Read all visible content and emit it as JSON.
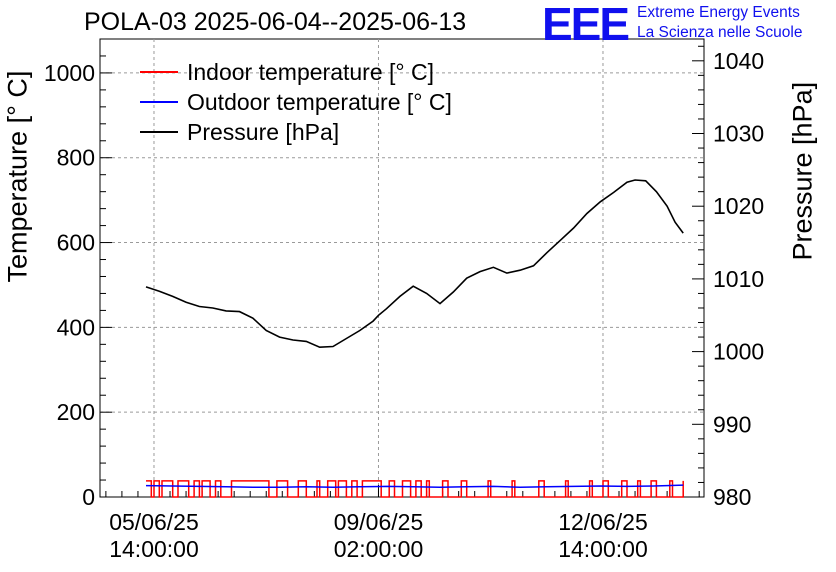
{
  "header": {
    "title": "POLA-03 2025-06-04--2025-06-13"
  },
  "logo": {
    "mark": "EEE",
    "line1": "Extreme Energy Events",
    "line2": "La Scienza nelle Scuole",
    "color": "#1010ee"
  },
  "legend": [
    {
      "label": "Indoor temperature [° C]",
      "color": "#ff0000"
    },
    {
      "label": "Outdoor temperature [° C]",
      "color": "#0000ff"
    },
    {
      "label": "Pressure [hPa]",
      "color": "#000000"
    }
  ],
  "chart_data": {
    "type": "line",
    "title": "POLA-03 2025-06-04--2025-06-13",
    "xlabel": "",
    "ylabel": "Temperature [° C]",
    "ylabel_right": "Pressure [hPa]",
    "ylim": [
      0,
      1080
    ],
    "ylim_right": [
      980,
      1043
    ],
    "yticks": [
      0,
      200,
      400,
      600,
      800,
      1000
    ],
    "yticks_right": [
      980,
      990,
      1000,
      1010,
      1020,
      1030,
      1040
    ],
    "x_unit": "hours since 2025-06-04 00:00",
    "xlim": [
      17.8,
      243.8
    ],
    "xticks": [
      {
        "x": 38,
        "label_date": "05/06/25",
        "label_time": "14:00:00"
      },
      {
        "x": 122,
        "label_date": "09/06/25",
        "label_time": "02:00:00"
      },
      {
        "x": 206,
        "label_date": "12/06/25",
        "label_time": "14:00:00"
      }
    ],
    "grid": true,
    "legend_position": "top-left",
    "series": [
      {
        "name": "Indoor temperature [° C]",
        "axis": "left",
        "color": "#ff0000",
        "x": [
          35,
          37,
          38,
          40,
          41,
          43,
          45,
          47,
          48,
          51,
          53,
          55,
          56,
          59,
          61,
          63,
          67,
          79,
          81,
          84,
          88,
          92,
          94,
          95,
          99,
          100,
          103,
          106,
          107,
          110,
          112,
          114,
          116,
          121,
          123,
          126,
          128,
          131,
          134,
          136,
          138,
          140,
          141,
          146,
          148,
          153,
          155,
          163,
          164,
          172,
          173,
          182,
          184,
          192,
          193,
          201,
          202,
          206,
          208,
          213,
          215,
          219,
          220,
          224,
          226,
          231,
          232,
          236
        ],
        "values": [
          38,
          0,
          38,
          0,
          38,
          38,
          0,
          38,
          38,
          0,
          38,
          0,
          38,
          0,
          38,
          0,
          38,
          38,
          0,
          38,
          0,
          38,
          38,
          0,
          38,
          0,
          38,
          0,
          38,
          0,
          38,
          0,
          38,
          38,
          0,
          38,
          0,
          38,
          0,
          38,
          0,
          38,
          0,
          38,
          0,
          38,
          0,
          38,
          0,
          38,
          0,
          38,
          0,
          38,
          0,
          38,
          0,
          38,
          0,
          38,
          0,
          38,
          0,
          38,
          0,
          38,
          0,
          38
        ]
      },
      {
        "name": "Outdoor temperature [° C]",
        "axis": "left",
        "color": "#0000ff",
        "x": [
          35,
          45,
          55,
          65,
          75,
          85,
          95,
          105,
          115,
          125,
          135,
          145,
          155,
          165,
          175,
          185,
          195,
          205,
          215,
          225,
          236
        ],
        "values": [
          27,
          26,
          25,
          24,
          23,
          23,
          24,
          23,
          24,
          25,
          24,
          23,
          24,
          25,
          23,
          24,
          25,
          26,
          25,
          26,
          28
        ]
      },
      {
        "name": "Pressure [hPa]",
        "axis": "right",
        "color": "#000000",
        "x": [
          35,
          40,
          45,
          50,
          55,
          60,
          65,
          70,
          75,
          80,
          85,
          90,
          95,
          100,
          105,
          110,
          115,
          120,
          122,
          125,
          130,
          135,
          140,
          145,
          150,
          155,
          160,
          165,
          170,
          175,
          180,
          185,
          190,
          195,
          200,
          205,
          210,
          215,
          218,
          222,
          226,
          230,
          233,
          236
        ],
        "values": [
          1008.9,
          1008.3,
          1007.6,
          1006.8,
          1006.2,
          1006.0,
          1005.6,
          1005.5,
          1004.6,
          1002.9,
          1002.0,
          1001.6,
          1001.4,
          1000.6,
          1000.7,
          1001.8,
          1002.9,
          1004.2,
          1005.0,
          1005.9,
          1007.6,
          1009.0,
          1008.0,
          1006.6,
          1008.2,
          1010.1,
          1011.0,
          1011.6,
          1010.8,
          1011.2,
          1011.8,
          1013.6,
          1015.3,
          1017.0,
          1019.0,
          1020.6,
          1021.9,
          1023.3,
          1023.6,
          1023.5,
          1022.0,
          1020.0,
          1017.8,
          1016.3
        ]
      }
    ]
  }
}
